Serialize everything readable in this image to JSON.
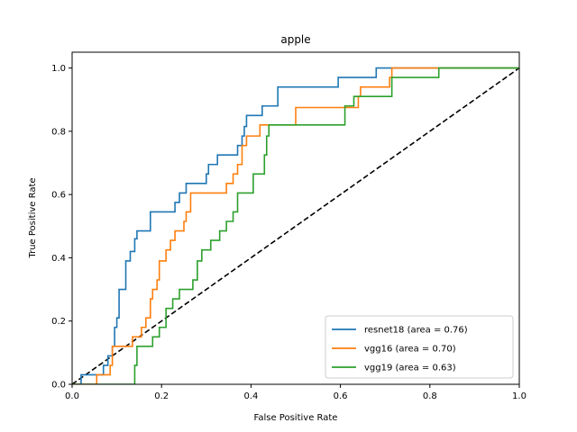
{
  "chart_data": {
    "type": "line",
    "title": "apple",
    "xlabel": "False Positive Rate",
    "ylabel": "True Positive Rate",
    "xlim": [
      0.0,
      1.0
    ],
    "ylim": [
      0.0,
      1.05
    ],
    "x_ticks": [
      "0.0",
      "0.2",
      "0.4",
      "0.6",
      "0.8",
      "1.0"
    ],
    "y_ticks": [
      "0.0",
      "0.2",
      "0.4",
      "0.6",
      "0.8",
      "1.0"
    ],
    "grid": false,
    "legend_position": "lower-right",
    "reference_line": {
      "x": [
        0,
        1
      ],
      "y": [
        0,
        1
      ],
      "color": "#000000",
      "style": "dashed"
    },
    "series": [
      {
        "name": "resnet18 (area = 0.76)",
        "color": "#1f77b4",
        "points": [
          [
            0,
            0
          ],
          [
            0.02,
            0
          ],
          [
            0.02,
            0.03
          ],
          [
            0.07,
            0.03
          ],
          [
            0.07,
            0.06
          ],
          [
            0.08,
            0.06
          ],
          [
            0.08,
            0.09
          ],
          [
            0.09,
            0.09
          ],
          [
            0.09,
            0.12
          ],
          [
            0.095,
            0.12
          ],
          [
            0.095,
            0.18
          ],
          [
            0.1,
            0.18
          ],
          [
            0.1,
            0.21
          ],
          [
            0.105,
            0.21
          ],
          [
            0.105,
            0.3
          ],
          [
            0.12,
            0.3
          ],
          [
            0.12,
            0.39
          ],
          [
            0.13,
            0.39
          ],
          [
            0.13,
            0.42
          ],
          [
            0.14,
            0.42
          ],
          [
            0.14,
            0.46
          ],
          [
            0.145,
            0.46
          ],
          [
            0.145,
            0.485
          ],
          [
            0.175,
            0.485
          ],
          [
            0.175,
            0.545
          ],
          [
            0.23,
            0.545
          ],
          [
            0.23,
            0.575
          ],
          [
            0.24,
            0.575
          ],
          [
            0.24,
            0.605
          ],
          [
            0.255,
            0.605
          ],
          [
            0.255,
            0.635
          ],
          [
            0.3,
            0.635
          ],
          [
            0.3,
            0.665
          ],
          [
            0.305,
            0.665
          ],
          [
            0.305,
            0.695
          ],
          [
            0.325,
            0.695
          ],
          [
            0.325,
            0.725
          ],
          [
            0.37,
            0.725
          ],
          [
            0.37,
            0.755
          ],
          [
            0.38,
            0.755
          ],
          [
            0.38,
            0.785
          ],
          [
            0.385,
            0.785
          ],
          [
            0.385,
            0.815
          ],
          [
            0.39,
            0.815
          ],
          [
            0.39,
            0.85
          ],
          [
            0.425,
            0.85
          ],
          [
            0.425,
            0.88
          ],
          [
            0.46,
            0.88
          ],
          [
            0.46,
            0.94
          ],
          [
            0.595,
            0.94
          ],
          [
            0.595,
            0.97
          ],
          [
            0.68,
            0.97
          ],
          [
            0.68,
            1.0
          ],
          [
            1.0,
            1.0
          ]
        ]
      },
      {
        "name": "vgg16 (area = 0.70)",
        "color": "#ff7f0e",
        "points": [
          [
            0,
            0
          ],
          [
            0.055,
            0
          ],
          [
            0.055,
            0.03
          ],
          [
            0.085,
            0.03
          ],
          [
            0.085,
            0.06
          ],
          [
            0.09,
            0.06
          ],
          [
            0.09,
            0.12
          ],
          [
            0.135,
            0.12
          ],
          [
            0.135,
            0.15
          ],
          [
            0.155,
            0.15
          ],
          [
            0.155,
            0.18
          ],
          [
            0.165,
            0.18
          ],
          [
            0.165,
            0.21
          ],
          [
            0.175,
            0.21
          ],
          [
            0.175,
            0.27
          ],
          [
            0.18,
            0.27
          ],
          [
            0.18,
            0.3
          ],
          [
            0.19,
            0.3
          ],
          [
            0.19,
            0.33
          ],
          [
            0.195,
            0.33
          ],
          [
            0.195,
            0.39
          ],
          [
            0.21,
            0.39
          ],
          [
            0.21,
            0.425
          ],
          [
            0.22,
            0.425
          ],
          [
            0.22,
            0.455
          ],
          [
            0.23,
            0.455
          ],
          [
            0.23,
            0.485
          ],
          [
            0.25,
            0.485
          ],
          [
            0.25,
            0.515
          ],
          [
            0.255,
            0.515
          ],
          [
            0.255,
            0.545
          ],
          [
            0.265,
            0.545
          ],
          [
            0.265,
            0.605
          ],
          [
            0.345,
            0.605
          ],
          [
            0.345,
            0.635
          ],
          [
            0.36,
            0.635
          ],
          [
            0.36,
            0.665
          ],
          [
            0.37,
            0.665
          ],
          [
            0.37,
            0.695
          ],
          [
            0.38,
            0.695
          ],
          [
            0.38,
            0.755
          ],
          [
            0.39,
            0.755
          ],
          [
            0.39,
            0.785
          ],
          [
            0.42,
            0.785
          ],
          [
            0.42,
            0.82
          ],
          [
            0.5,
            0.82
          ],
          [
            0.5,
            0.875
          ],
          [
            0.64,
            0.875
          ],
          [
            0.64,
            0.91
          ],
          [
            0.645,
            0.91
          ],
          [
            0.645,
            0.94
          ],
          [
            0.71,
            0.94
          ],
          [
            0.71,
            0.97
          ],
          [
            0.715,
            0.97
          ],
          [
            0.715,
            1.0
          ],
          [
            1.0,
            1.0
          ]
        ]
      },
      {
        "name": "vgg19 (area = 0.63)",
        "color": "#2ca02c",
        "points": [
          [
            0,
            0
          ],
          [
            0.14,
            0
          ],
          [
            0.14,
            0.06
          ],
          [
            0.145,
            0.06
          ],
          [
            0.145,
            0.12
          ],
          [
            0.18,
            0.12
          ],
          [
            0.18,
            0.15
          ],
          [
            0.195,
            0.15
          ],
          [
            0.195,
            0.18
          ],
          [
            0.21,
            0.18
          ],
          [
            0.21,
            0.24
          ],
          [
            0.225,
            0.24
          ],
          [
            0.225,
            0.27
          ],
          [
            0.24,
            0.27
          ],
          [
            0.24,
            0.3
          ],
          [
            0.27,
            0.3
          ],
          [
            0.27,
            0.33
          ],
          [
            0.28,
            0.33
          ],
          [
            0.28,
            0.39
          ],
          [
            0.29,
            0.39
          ],
          [
            0.29,
            0.425
          ],
          [
            0.31,
            0.425
          ],
          [
            0.31,
            0.455
          ],
          [
            0.33,
            0.455
          ],
          [
            0.33,
            0.485
          ],
          [
            0.345,
            0.485
          ],
          [
            0.345,
            0.515
          ],
          [
            0.36,
            0.515
          ],
          [
            0.36,
            0.545
          ],
          [
            0.37,
            0.545
          ],
          [
            0.37,
            0.605
          ],
          [
            0.405,
            0.605
          ],
          [
            0.405,
            0.665
          ],
          [
            0.43,
            0.665
          ],
          [
            0.43,
            0.725
          ],
          [
            0.435,
            0.725
          ],
          [
            0.435,
            0.785
          ],
          [
            0.44,
            0.785
          ],
          [
            0.44,
            0.82
          ],
          [
            0.61,
            0.82
          ],
          [
            0.61,
            0.88
          ],
          [
            0.63,
            0.88
          ],
          [
            0.63,
            0.91
          ],
          [
            0.715,
            0.91
          ],
          [
            0.715,
            0.97
          ],
          [
            0.82,
            0.97
          ],
          [
            0.82,
            1.0
          ],
          [
            1.0,
            1.0
          ]
        ]
      }
    ]
  }
}
